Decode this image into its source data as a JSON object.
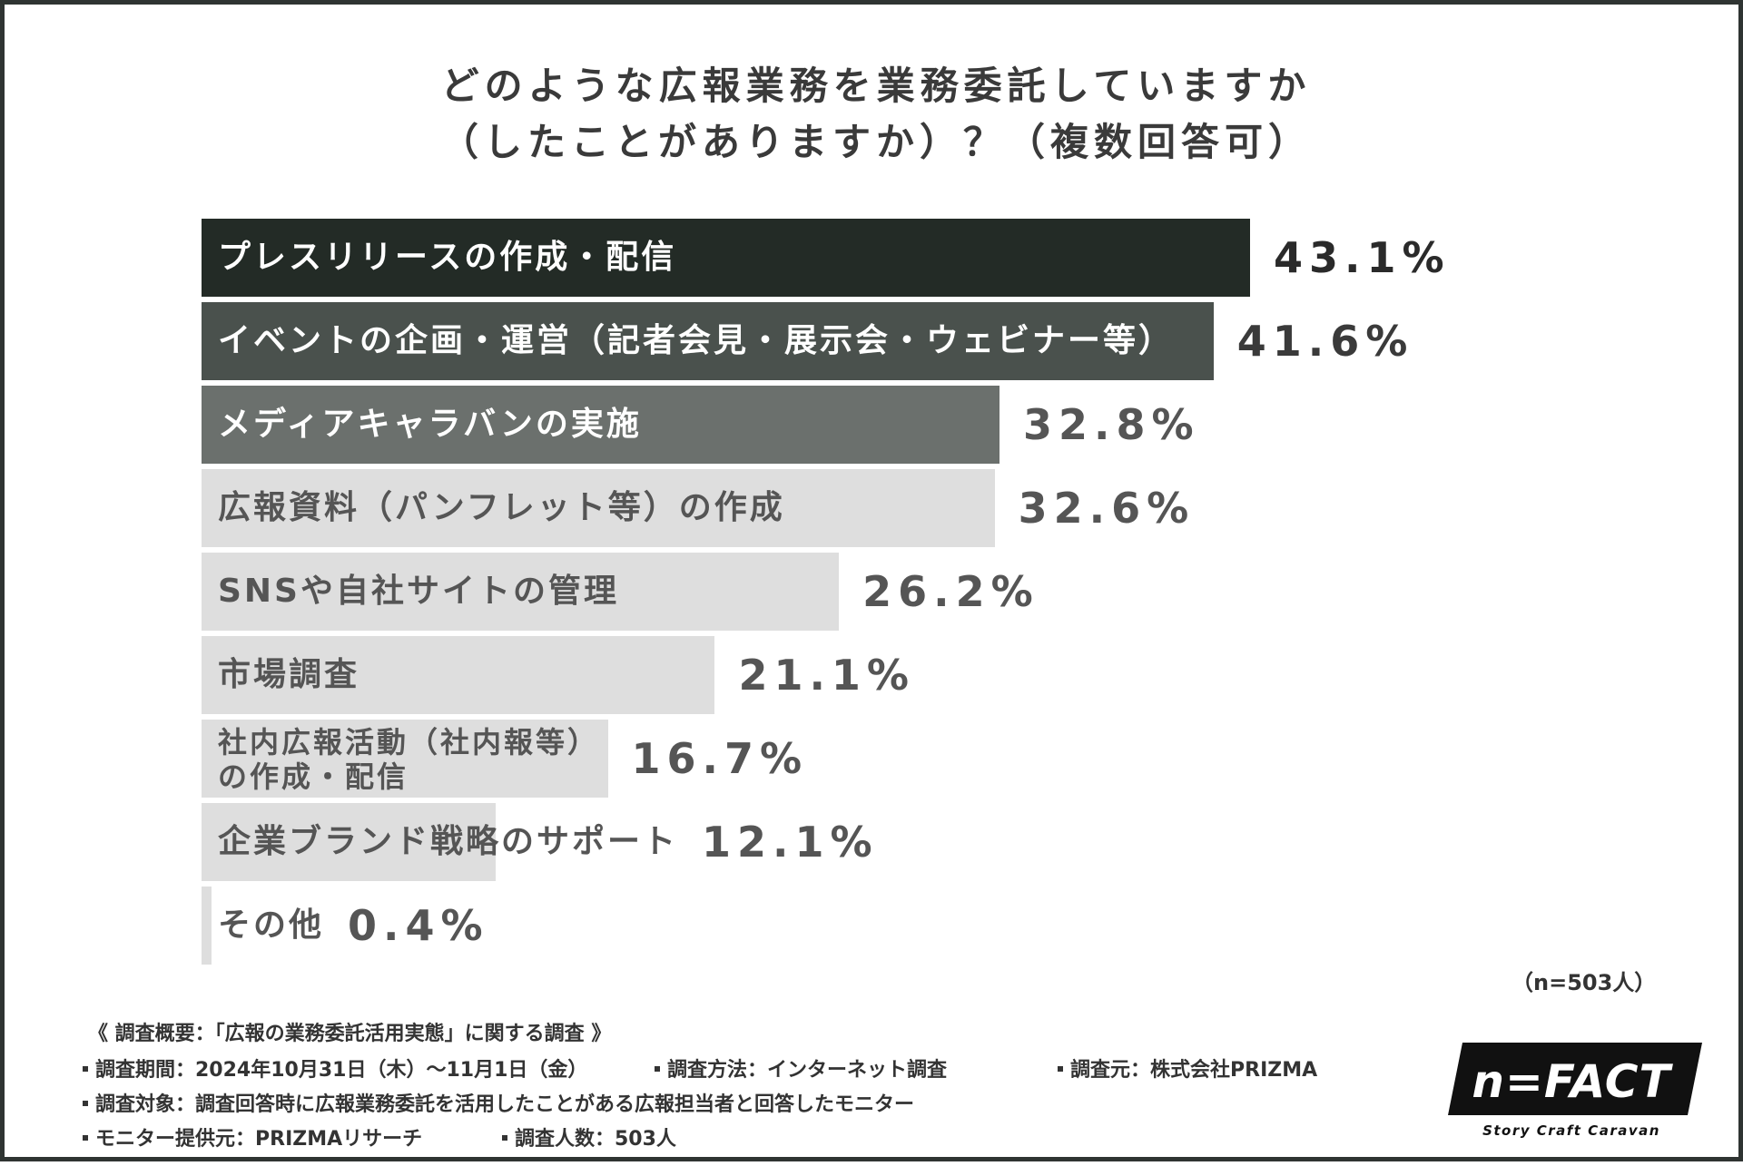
{
  "title": {
    "line1": "どのような広報業務を業務委託していますか",
    "line2": "（したことがありますか）？（複数回答可）"
  },
  "chart_data": {
    "type": "bar",
    "orientation": "horizontal",
    "title": "どのような広報業務を業務委託していますか（したことがありますか）？（複数回答可）",
    "categories": [
      "プレスリリースの作成・配信",
      "イベントの企画・運営（記者会見・展示会・ウェビナー等）",
      "メディアキャラバンの実施",
      "広報資料（パンフレット等）の作成",
      "SNSや自社サイトの管理",
      "市場調査",
      "社内広報活動（社内報等）の作成・配信",
      "企業ブランド戦略のサポート",
      "その他"
    ],
    "values": [
      43.1,
      41.6,
      32.8,
      32.6,
      26.2,
      21.1,
      16.7,
      12.1,
      0.4
    ],
    "value_labels": [
      "43.1%",
      "41.6%",
      "32.8%",
      "32.6%",
      "26.2%",
      "21.1%",
      "16.7%",
      "12.1%",
      "0.4%"
    ],
    "unit": "%",
    "colors": [
      "#232b26",
      "#4a514d",
      "#6b706d",
      "#dedede",
      "#dedede",
      "#dedede",
      "#dedede",
      "#dedede",
      "#dedede"
    ],
    "label_colors": [
      "#ffffff",
      "#ffffff",
      "#ffffff",
      "#555555",
      "#555555",
      "#555555",
      "#555555",
      "#555555",
      "#555555"
    ],
    "value_colors": [
      "#2a2a2a",
      "#3a3a3a",
      "#555555",
      "#555555",
      "#555555",
      "#555555",
      "#555555",
      "#555555",
      "#555555"
    ],
    "xlim": [
      0,
      43.1
    ],
    "grid": false,
    "legend": "none"
  },
  "sample_size": "（n=503人）",
  "survey": {
    "heading": "《 調査概要：「広報の業務委託活用実態」に関する調査 》",
    "period": "調査期間：2024年10月31日（木）～11月1日（金）",
    "method": "調査方法：インターネット調査",
    "source": "調査元：株式会社PRIZMA",
    "target": "調査対象：調査回答時に広報業務委託を活用したことがある広報担当者と回答したモニター",
    "provider": "モニター提供元：PRIZMAリサーチ",
    "respondents": "調査人数：503人"
  },
  "logo": {
    "name": "n=FACT",
    "tagline": "Story Craft Caravan"
  },
  "colors": {
    "frame": "#2f3432",
    "text_dark": "#3a3a3a",
    "light_bar": "#dedede"
  }
}
